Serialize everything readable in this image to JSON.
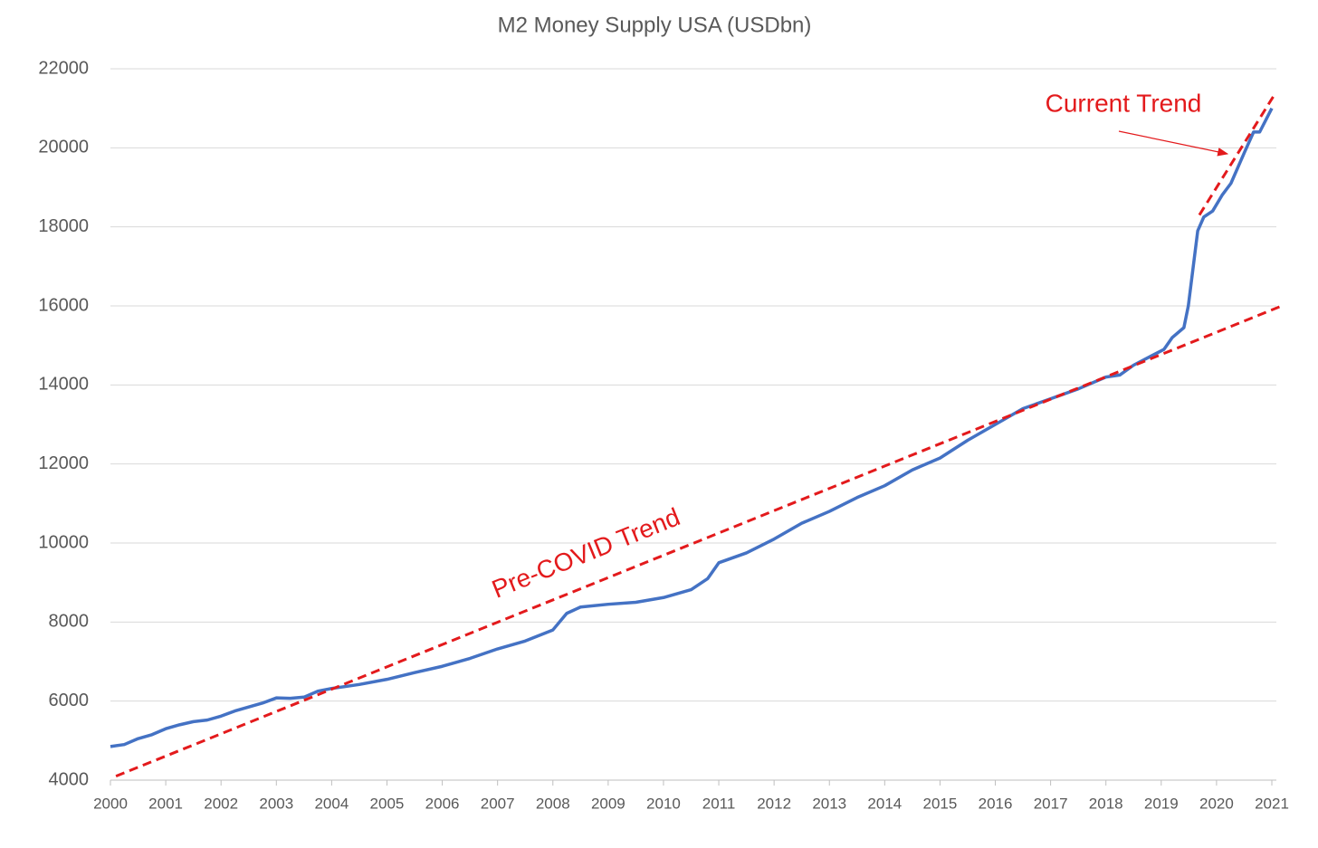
{
  "chart_data": {
    "type": "line",
    "title": "M2 Money Supply USA (USDbn)",
    "x": [
      2000.0,
      2000.25,
      2000.5,
      2000.75,
      2001.0,
      2001.25,
      2001.5,
      2001.75,
      2002.0,
      2002.25,
      2002.5,
      2002.75,
      2003.0,
      2003.25,
      2003.5,
      2003.75,
      2004.0,
      2004.5,
      2005.0,
      2005.5,
      2006.0,
      2006.5,
      2007.0,
      2007.5,
      2008.0,
      2008.25,
      2008.5,
      2009.0,
      2009.5,
      2010.0,
      2010.5,
      2010.8,
      2011.0,
      2011.5,
      2012.0,
      2012.5,
      2013.0,
      2013.5,
      2014.0,
      2014.5,
      2015.0,
      2015.5,
      2016.0,
      2016.5,
      2017.0,
      2017.5,
      2018.0,
      2018.25,
      2018.5,
      2019.05,
      2019.2,
      2019.41,
      2019.49,
      2019.66,
      2019.77,
      2019.93,
      2020.1,
      2020.26,
      2020.51,
      2020.67,
      2020.78,
      2021.0
    ],
    "series": [
      {
        "name": "M2",
        "color": "#4472c4",
        "values": [
          4850,
          4900,
          5050,
          5150,
          5300,
          5400,
          5480,
          5520,
          5620,
          5750,
          5850,
          5950,
          6080,
          6070,
          6100,
          6250,
          6320,
          6420,
          6550,
          6720,
          6880,
          7080,
          7320,
          7520,
          7800,
          8220,
          8380,
          8450,
          8500,
          8620,
          8820,
          9100,
          9500,
          9750,
          10100,
          10500,
          10800,
          11150,
          11450,
          11850,
          12150,
          12600,
          13000,
          13400,
          13650,
          13900,
          14200,
          14250,
          14500,
          14900,
          15200,
          15450,
          16000,
          17900,
          18250,
          18400,
          18800,
          19100,
          19900,
          20400,
          20400,
          21000
        ]
      }
    ],
    "trend_lines": [
      {
        "color": "#e31a1c",
        "x": [
          2000.1,
          2021.18
        ],
        "values": [
          4100,
          16000
        ]
      },
      {
        "color": "#e31a1c",
        "x": [
          2019.69,
          2021.05
        ],
        "values": [
          18300,
          21350
        ]
      }
    ],
    "annotations": [
      "Pre-COVID Trend",
      "Current Trend"
    ],
    "annotation_color": "#e31a1c",
    "xlim": [
      2000,
      2021
    ],
    "xticks": [
      2000,
      2001,
      2002,
      2003,
      2004,
      2005,
      2006,
      2007,
      2008,
      2009,
      2010,
      2011,
      2012,
      2013,
      2014,
      2015,
      2016,
      2017,
      2018,
      2019,
      2020,
      2021
    ],
    "ylim": [
      4000,
      22000
    ],
    "yticks": [
      4000,
      6000,
      8000,
      10000,
      12000,
      14000,
      16000,
      18000,
      20000,
      22000
    ],
    "grid": true
  }
}
